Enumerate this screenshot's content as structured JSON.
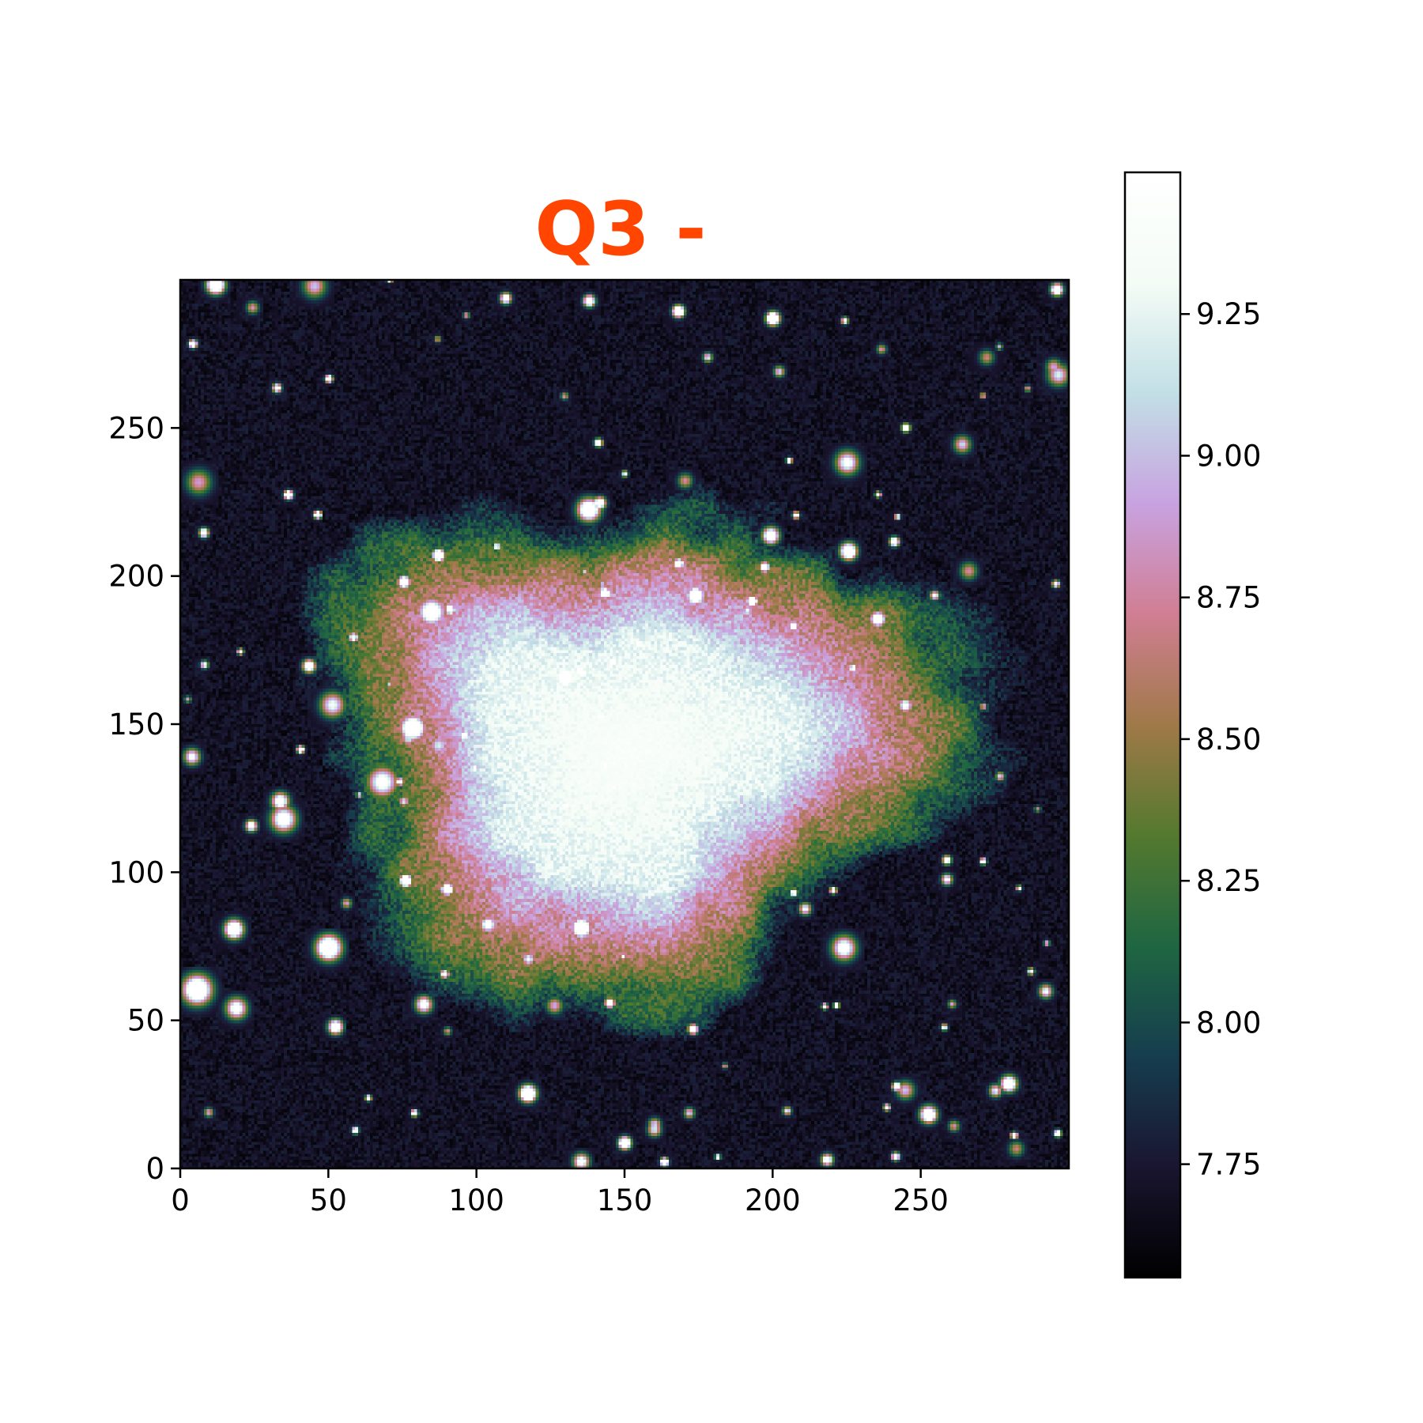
{
  "chart_data": {
    "type": "heatmap",
    "title": "Q3  -",
    "title_color": "#ff4500",
    "xlabel": "",
    "ylabel": "",
    "xlim": [
      0,
      300
    ],
    "ylim": [
      0,
      300
    ],
    "xticks": [
      0,
      50,
      100,
      150,
      200,
      250
    ],
    "yticks": [
      0,
      50,
      100,
      150,
      200,
      250
    ],
    "grid": false,
    "colormap": "cubehelix",
    "colorbar": {
      "ticks": [
        "7.75",
        "8.00",
        "8.25",
        "8.50",
        "8.75",
        "9.00",
        "9.25"
      ],
      "range": [
        7.55,
        9.5
      ],
      "stops": [
        "#000000",
        "#1a1530",
        "#163d4e",
        "#1f6642",
        "#54792f",
        "#a07949",
        "#d07e93",
        "#c8a2e0",
        "#c2dfe6",
        "#f4fcf6",
        "#ffffff"
      ]
    },
    "nebula": {
      "center": [
        150,
        140
      ],
      "peak_value": 9.5,
      "background_value": 7.7,
      "description_values": {
        "core": 9.4,
        "rim": 8.7,
        "halo": 8.2
      }
    }
  }
}
